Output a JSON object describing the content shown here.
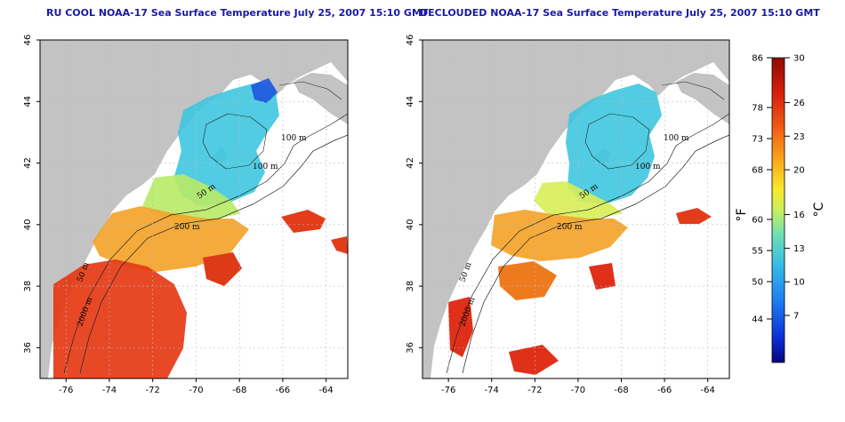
{
  "titles": {
    "left": "RU COOL NOAA-17 Sea Surface Temperature July 25, 2007 15:10 GMT",
    "right": "DECLOUDED NOAA-17 Sea Surface Temperature July 25, 2007 15:10 GMT"
  },
  "axes": {
    "lon_ticks": [
      "-76",
      "-74",
      "-72",
      "-70",
      "-68",
      "-66",
      "-64"
    ],
    "lat_ticks": [
      "36",
      "38",
      "40",
      "42",
      "44",
      "46"
    ],
    "lon_range": [
      -77.2,
      -63.0
    ],
    "lat_range": [
      35.0,
      46.0
    ]
  },
  "contour_labels": [
    "100 m",
    "100 m",
    "50 m",
    "200 m",
    "50 m",
    "2000 m"
  ],
  "colorbar": {
    "f_unit": "°F",
    "c_unit": "°C",
    "f_ticks": [
      "86",
      "78",
      "73",
      "68",
      "60",
      "55",
      "50",
      "44"
    ],
    "c_ticks": [
      "30",
      "26",
      "23",
      "20",
      "16",
      "13",
      "10",
      "7"
    ],
    "colors": [
      "#08057a",
      "#0a2fd6",
      "#1e7bf0",
      "#35bde8",
      "#6fe0b5",
      "#c9ef5c",
      "#fbe82a",
      "#f9a31c",
      "#f05d13",
      "#d9200d",
      "#8f0b05"
    ]
  }
}
